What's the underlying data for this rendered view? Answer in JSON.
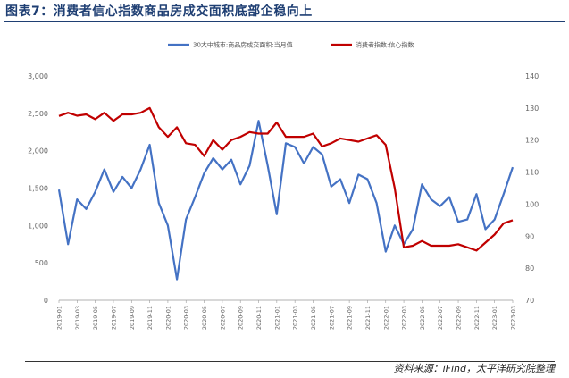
{
  "header": {
    "title": "图表7：消费者信心指数商品房成交面积底部企稳向上"
  },
  "footer": {
    "source": "资料来源：iFind，太平洋研究院整理"
  },
  "chart_data": {
    "type": "line",
    "title": "",
    "legend_position": "top",
    "x": [
      "2019-01",
      "2019-02",
      "2019-03",
      "2019-04",
      "2019-05",
      "2019-06",
      "2019-07",
      "2019-08",
      "2019-09",
      "2019-10",
      "2019-11",
      "2019-12",
      "2020-01",
      "2020-02",
      "2020-03",
      "2020-04",
      "2020-05",
      "2020-06",
      "2020-07",
      "2020-08",
      "2020-09",
      "2020-10",
      "2020-11",
      "2020-12",
      "2021-01",
      "2021-02",
      "2021-03",
      "2021-04",
      "2021-05",
      "2021-06",
      "2021-07",
      "2021-08",
      "2021-09",
      "2021-10",
      "2021-11",
      "2021-12",
      "2022-01",
      "2022-02",
      "2022-03",
      "2022-04",
      "2022-05",
      "2022-06",
      "2022-07",
      "2022-08",
      "2022-09",
      "2022-10",
      "2022-11",
      "2022-12",
      "2023-01",
      "2023-02",
      "2023-03"
    ],
    "x_tick_labels": [
      "2019-01",
      "2019-03",
      "2019-05",
      "2019-07",
      "2019-09",
      "2019-11",
      "2020-01",
      "2020-03",
      "2020-05",
      "2020-07",
      "2020-09",
      "2020-11",
      "2021-01",
      "2021-03",
      "2021-05",
      "2021-07",
      "2021-09",
      "2021-11",
      "2022-01",
      "2022-03",
      "2022-05",
      "2022-07",
      "2022-09",
      "2022-11",
      "2023-01",
      "2023-03"
    ],
    "y_left": {
      "ticks": [
        "0",
        "500",
        "1,000",
        "1,500",
        "2,000",
        "2,500",
        "3,000"
      ],
      "ylim": [
        0,
        3000
      ]
    },
    "y_right": {
      "ticks": [
        "70",
        "80",
        "90",
        "100",
        "110",
        "120",
        "130",
        "140"
      ],
      "ylim": [
        70,
        140
      ]
    },
    "series": [
      {
        "name": "30大中城市:商品房成交面积:当月值",
        "axis": "left",
        "color": "#4472c4",
        "values": [
          1480,
          750,
          1350,
          1220,
          1450,
          1750,
          1450,
          1650,
          1500,
          1750,
          2080,
          1300,
          1000,
          280,
          1080,
          1380,
          1700,
          1900,
          1750,
          1880,
          1550,
          1800,
          2400,
          1800,
          1150,
          2100,
          2050,
          1830,
          2050,
          1950,
          1520,
          1620,
          1300,
          1680,
          1620,
          1300,
          650,
          1000,
          750,
          950,
          1550,
          1350,
          1260,
          1380,
          1050,
          1080,
          1420,
          950,
          1080,
          1420,
          1780
        ]
      },
      {
        "name": "消费者指数:信心指数",
        "axis": "right",
        "color": "#c00000",
        "values": [
          127.5,
          128.5,
          127.6,
          128.0,
          126.5,
          128.5,
          126.0,
          128.0,
          128.0,
          128.5,
          130.0,
          124.0,
          121.0,
          124.0,
          119.0,
          118.5,
          115.0,
          120.0,
          117.0,
          120.0,
          121.0,
          122.5,
          122.0,
          122.0,
          125.5,
          121.0,
          121.0,
          121.0,
          122.0,
          118.0,
          119.0,
          120.5,
          120.0,
          119.5,
          120.5,
          121.5,
          118.5,
          105.0,
          86.5,
          87.0,
          88.5,
          87.0,
          87.0,
          87.0,
          87.5,
          86.5,
          85.5,
          88.0,
          90.5,
          94.0,
          95.0
        ]
      }
    ]
  }
}
